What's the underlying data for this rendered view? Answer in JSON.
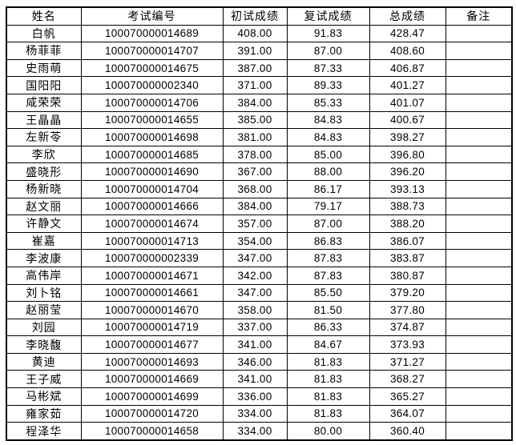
{
  "table": {
    "columns": [
      "姓名",
      "考试编号",
      "初试成绩",
      "复试成绩",
      "总成绩",
      "备注"
    ],
    "rows": [
      {
        "name": "白帆",
        "exam_id": "100070000014689",
        "initial": "408.00",
        "retest": "91.83",
        "total": "428.47",
        "remark": ""
      },
      {
        "name": "杨菲菲",
        "exam_id": "100070000014707",
        "initial": "391.00",
        "retest": "87.00",
        "total": "408.60",
        "remark": ""
      },
      {
        "name": "史雨萌",
        "exam_id": "100070000014675",
        "initial": "387.00",
        "retest": "87.33",
        "total": "406.87",
        "remark": ""
      },
      {
        "name": "国阳阳",
        "exam_id": "100070000002340",
        "initial": "371.00",
        "retest": "89.33",
        "total": "401.27",
        "remark": ""
      },
      {
        "name": "咸荣荣",
        "exam_id": "100070000014706",
        "initial": "384.00",
        "retest": "85.33",
        "total": "401.07",
        "remark": ""
      },
      {
        "name": "王晶晶",
        "exam_id": "100070000014655",
        "initial": "385.00",
        "retest": "84.83",
        "total": "400.67",
        "remark": ""
      },
      {
        "name": "左新苓",
        "exam_id": "100070000014698",
        "initial": "381.00",
        "retest": "84.83",
        "total": "398.27",
        "remark": ""
      },
      {
        "name": "李欣",
        "exam_id": "100070000014685",
        "initial": "378.00",
        "retest": "85.00",
        "total": "396.80",
        "remark": ""
      },
      {
        "name": "盛晓形",
        "exam_id": "100070000014690",
        "initial": "367.00",
        "retest": "88.00",
        "total": "396.20",
        "remark": ""
      },
      {
        "name": "杨新晓",
        "exam_id": "100070000014704",
        "initial": "368.00",
        "retest": "86.17",
        "total": "393.13",
        "remark": ""
      },
      {
        "name": "赵文丽",
        "exam_id": "100070000014666",
        "initial": "384.00",
        "retest": "79.17",
        "total": "388.73",
        "remark": ""
      },
      {
        "name": "许静文",
        "exam_id": "100070000014674",
        "initial": "357.00",
        "retest": "87.00",
        "total": "388.20",
        "remark": ""
      },
      {
        "name": "崔嘉",
        "exam_id": "100070000014713",
        "initial": "354.00",
        "retest": "86.83",
        "total": "386.07",
        "remark": ""
      },
      {
        "name": "李波康",
        "exam_id": "100070000002339",
        "initial": "347.00",
        "retest": "87.83",
        "total": "383.87",
        "remark": ""
      },
      {
        "name": "高伟岸",
        "exam_id": "100070000014671",
        "initial": "342.00",
        "retest": "87.83",
        "total": "380.87",
        "remark": ""
      },
      {
        "name": "刘卜铭",
        "exam_id": "100070000014661",
        "initial": "347.00",
        "retest": "85.50",
        "total": "379.20",
        "remark": ""
      },
      {
        "name": "赵丽莹",
        "exam_id": "100070000014670",
        "initial": "358.00",
        "retest": "81.50",
        "total": "377.80",
        "remark": ""
      },
      {
        "name": "刘园",
        "exam_id": "100070000014719",
        "initial": "337.00",
        "retest": "86.33",
        "total": "374.87",
        "remark": ""
      },
      {
        "name": "李晓馥",
        "exam_id": "100070000014677",
        "initial": "341.00",
        "retest": "84.67",
        "total": "373.93",
        "remark": ""
      },
      {
        "name": "黄迪",
        "exam_id": "100070000014693",
        "initial": "346.00",
        "retest": "81.83",
        "total": "371.27",
        "remark": ""
      },
      {
        "name": "王子威",
        "exam_id": "100070000014669",
        "initial": "341.00",
        "retest": "81.83",
        "total": "368.27",
        "remark": ""
      },
      {
        "name": "马彬斌",
        "exam_id": "100070000014699",
        "initial": "336.00",
        "retest": "81.83",
        "total": "365.27",
        "remark": ""
      },
      {
        "name": "雍家茹",
        "exam_id": "100070000014720",
        "initial": "334.00",
        "retest": "81.83",
        "total": "364.07",
        "remark": ""
      },
      {
        "name": "程泽华",
        "exam_id": "100070000014658",
        "initial": "334.00",
        "retest": "80.00",
        "total": "360.40",
        "remark": ""
      }
    ]
  }
}
